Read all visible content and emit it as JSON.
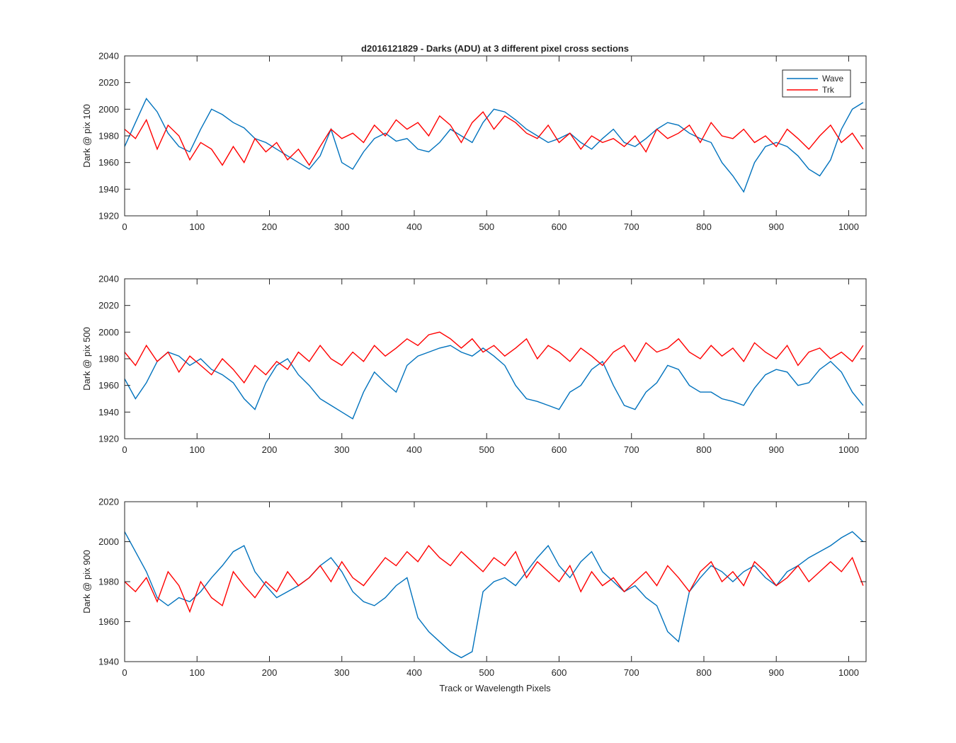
{
  "figure": {
    "title": "d2016121829 - Darks (ADU) at 3 different pixel cross sections",
    "xlabel": "Track or Wavelength Pixels",
    "colors": {
      "wave": "#0072BD",
      "trk": "#FF0000",
      "axes": "#262626"
    }
  },
  "chart_data": [
    {
      "type": "line",
      "ylabel": "Dark @ pix 100",
      "xlim": [
        0,
        1024
      ],
      "ylim": [
        1920,
        2040
      ],
      "xticks": [
        0,
        100,
        200,
        300,
        400,
        500,
        600,
        700,
        800,
        900,
        1000
      ],
      "yticks": [
        1920,
        1940,
        1960,
        1980,
        2000,
        2020,
        2040
      ],
      "legend": {
        "position": "top-right",
        "entries": [
          "Wave",
          "Trk"
        ]
      },
      "series": [
        {
          "name": "Wave",
          "color": "#0072BD",
          "x": [
            0,
            15,
            30,
            45,
            60,
            75,
            90,
            105,
            120,
            135,
            150,
            165,
            180,
            195,
            210,
            225,
            240,
            255,
            270,
            285,
            300,
            315,
            330,
            345,
            360,
            375,
            390,
            405,
            420,
            435,
            450,
            465,
            480,
            495,
            510,
            525,
            540,
            555,
            570,
            585,
            600,
            615,
            630,
            645,
            660,
            675,
            690,
            705,
            720,
            735,
            750,
            765,
            780,
            795,
            810,
            825,
            840,
            855,
            870,
            885,
            900,
            915,
            930,
            945,
            960,
            975,
            990,
            1005,
            1020
          ],
          "values": [
            1972,
            1990,
            2008,
            1998,
            1982,
            1972,
            1968,
            1985,
            2000,
            1996,
            1990,
            1986,
            1978,
            1975,
            1970,
            1965,
            1960,
            1955,
            1965,
            1985,
            1960,
            1955,
            1968,
            1978,
            1982,
            1976,
            1978,
            1970,
            1968,
            1975,
            1985,
            1980,
            1975,
            1990,
            2000,
            1998,
            1992,
            1985,
            1980,
            1975,
            1978,
            1982,
            1975,
            1970,
            1978,
            1985,
            1975,
            1972,
            1978,
            1985,
            1990,
            1988,
            1982,
            1978,
            1975,
            1960,
            1950,
            1938,
            1960,
            1972,
            1975,
            1972,
            1965,
            1955,
            1950,
            1962,
            1985,
            2000,
            2005
          ]
        },
        {
          "name": "Trk",
          "color": "#FF0000",
          "x": [
            0,
            15,
            30,
            45,
            60,
            75,
            90,
            105,
            120,
            135,
            150,
            165,
            180,
            195,
            210,
            225,
            240,
            255,
            270,
            285,
            300,
            315,
            330,
            345,
            360,
            375,
            390,
            405,
            420,
            435,
            450,
            465,
            480,
            495,
            510,
            525,
            540,
            555,
            570,
            585,
            600,
            615,
            630,
            645,
            660,
            675,
            690,
            705,
            720,
            735,
            750,
            765,
            780,
            795,
            810,
            825,
            840,
            855,
            870,
            885,
            900,
            915,
            930,
            945,
            960,
            975,
            990,
            1005,
            1020
          ],
          "values": [
            1985,
            1978,
            1992,
            1970,
            1988,
            1980,
            1962,
            1975,
            1970,
            1958,
            1972,
            1960,
            1978,
            1968,
            1975,
            1962,
            1970,
            1958,
            1972,
            1985,
            1978,
            1982,
            1975,
            1988,
            1980,
            1992,
            1985,
            1990,
            1980,
            1995,
            1988,
            1975,
            1990,
            1998,
            1985,
            1995,
            1990,
            1982,
            1978,
            1988,
            1975,
            1982,
            1970,
            1980,
            1975,
            1978,
            1972,
            1980,
            1968,
            1985,
            1978,
            1982,
            1988,
            1975,
            1990,
            1980,
            1978,
            1985,
            1975,
            1980,
            1972,
            1985,
            1978,
            1970,
            1980,
            1988,
            1975,
            1982,
            1970
          ]
        }
      ]
    },
    {
      "type": "line",
      "ylabel": "Dark @ pix 500",
      "xlim": [
        0,
        1024
      ],
      "ylim": [
        1920,
        2040
      ],
      "xticks": [
        0,
        100,
        200,
        300,
        400,
        500,
        600,
        700,
        800,
        900,
        1000
      ],
      "yticks": [
        1920,
        1940,
        1960,
        1980,
        2000,
        2020,
        2040
      ],
      "series": [
        {
          "name": "Wave",
          "color": "#0072BD",
          "x": [
            0,
            15,
            30,
            45,
            60,
            75,
            90,
            105,
            120,
            135,
            150,
            165,
            180,
            195,
            210,
            225,
            240,
            255,
            270,
            285,
            300,
            315,
            330,
            345,
            360,
            375,
            390,
            405,
            420,
            435,
            450,
            465,
            480,
            495,
            510,
            525,
            540,
            555,
            570,
            585,
            600,
            615,
            630,
            645,
            660,
            675,
            690,
            705,
            720,
            735,
            750,
            765,
            780,
            795,
            810,
            825,
            840,
            855,
            870,
            885,
            900,
            915,
            930,
            945,
            960,
            975,
            990,
            1005,
            1020
          ],
          "values": [
            1965,
            1950,
            1962,
            1978,
            1985,
            1982,
            1975,
            1980,
            1972,
            1968,
            1962,
            1950,
            1942,
            1962,
            1975,
            1980,
            1968,
            1960,
            1950,
            1945,
            1940,
            1935,
            1955,
            1970,
            1962,
            1955,
            1975,
            1982,
            1985,
            1988,
            1990,
            1985,
            1982,
            1988,
            1982,
            1975,
            1960,
            1950,
            1948,
            1945,
            1942,
            1955,
            1960,
            1972,
            1978,
            1960,
            1945,
            1942,
            1955,
            1962,
            1975,
            1972,
            1960,
            1955,
            1955,
            1950,
            1948,
            1945,
            1958,
            1968,
            1972,
            1970,
            1960,
            1962,
            1972,
            1978,
            1970,
            1955,
            1945
          ]
        },
        {
          "name": "Trk",
          "color": "#FF0000",
          "x": [
            0,
            15,
            30,
            45,
            60,
            75,
            90,
            105,
            120,
            135,
            150,
            165,
            180,
            195,
            210,
            225,
            240,
            255,
            270,
            285,
            300,
            315,
            330,
            345,
            360,
            375,
            390,
            405,
            420,
            435,
            450,
            465,
            480,
            495,
            510,
            525,
            540,
            555,
            570,
            585,
            600,
            615,
            630,
            645,
            660,
            675,
            690,
            705,
            720,
            735,
            750,
            765,
            780,
            795,
            810,
            825,
            840,
            855,
            870,
            885,
            900,
            915,
            930,
            945,
            960,
            975,
            990,
            1005,
            1020
          ],
          "values": [
            1985,
            1975,
            1990,
            1978,
            1985,
            1970,
            1982,
            1975,
            1968,
            1980,
            1972,
            1962,
            1975,
            1968,
            1978,
            1972,
            1985,
            1978,
            1990,
            1980,
            1975,
            1985,
            1978,
            1990,
            1982,
            1988,
            1995,
            1990,
            1998,
            2000,
            1995,
            1988,
            1995,
            1985,
            1990,
            1982,
            1988,
            1995,
            1980,
            1990,
            1985,
            1978,
            1988,
            1982,
            1975,
            1985,
            1990,
            1978,
            1992,
            1985,
            1988,
            1995,
            1985,
            1980,
            1990,
            1982,
            1988,
            1978,
            1992,
            1985,
            1980,
            1990,
            1975,
            1985,
            1988,
            1980,
            1985,
            1978,
            1990
          ]
        }
      ]
    },
    {
      "type": "line",
      "ylabel": "Dark @ pix 900",
      "xlim": [
        0,
        1024
      ],
      "ylim": [
        1940,
        2020
      ],
      "xticks": [
        0,
        100,
        200,
        300,
        400,
        500,
        600,
        700,
        800,
        900,
        1000
      ],
      "yticks": [
        1940,
        1960,
        1980,
        2000,
        2020
      ],
      "series": [
        {
          "name": "Wave",
          "color": "#0072BD",
          "x": [
            0,
            15,
            30,
            45,
            60,
            75,
            90,
            105,
            120,
            135,
            150,
            165,
            180,
            195,
            210,
            225,
            240,
            255,
            270,
            285,
            300,
            315,
            330,
            345,
            360,
            375,
            390,
            405,
            420,
            435,
            450,
            465,
            480,
            495,
            510,
            525,
            540,
            555,
            570,
            585,
            600,
            615,
            630,
            645,
            660,
            675,
            690,
            705,
            720,
            735,
            750,
            765,
            780,
            795,
            810,
            825,
            840,
            855,
            870,
            885,
            900,
            915,
            930,
            945,
            960,
            975,
            990,
            1005,
            1020
          ],
          "values": [
            2005,
            1995,
            1985,
            1972,
            1968,
            1972,
            1970,
            1975,
            1982,
            1988,
            1995,
            1998,
            1985,
            1978,
            1972,
            1975,
            1978,
            1982,
            1988,
            1992,
            1985,
            1975,
            1970,
            1968,
            1972,
            1978,
            1982,
            1962,
            1955,
            1950,
            1945,
            1942,
            1945,
            1975,
            1980,
            1982,
            1978,
            1985,
            1992,
            1998,
            1988,
            1982,
            1990,
            1995,
            1985,
            1980,
            1975,
            1978,
            1972,
            1968,
            1955,
            1950,
            1975,
            1982,
            1988,
            1985,
            1980,
            1985,
            1988,
            1982,
            1978,
            1985,
            1988,
            1992,
            1995,
            1998,
            2002,
            2005,
            2000
          ]
        },
        {
          "name": "Trk",
          "color": "#FF0000",
          "x": [
            0,
            15,
            30,
            45,
            60,
            75,
            90,
            105,
            120,
            135,
            150,
            165,
            180,
            195,
            210,
            225,
            240,
            255,
            270,
            285,
            300,
            315,
            330,
            345,
            360,
            375,
            390,
            405,
            420,
            435,
            450,
            465,
            480,
            495,
            510,
            525,
            540,
            555,
            570,
            585,
            600,
            615,
            630,
            645,
            660,
            675,
            690,
            705,
            720,
            735,
            750,
            765,
            780,
            795,
            810,
            825,
            840,
            855,
            870,
            885,
            900,
            915,
            930,
            945,
            960,
            975,
            990,
            1005,
            1020
          ],
          "values": [
            1980,
            1975,
            1982,
            1970,
            1985,
            1978,
            1965,
            1980,
            1972,
            1968,
            1985,
            1978,
            1972,
            1980,
            1975,
            1985,
            1978,
            1982,
            1988,
            1980,
            1990,
            1982,
            1978,
            1985,
            1992,
            1988,
            1995,
            1990,
            1998,
            1992,
            1988,
            1995,
            1990,
            1985,
            1992,
            1988,
            1995,
            1982,
            1990,
            1985,
            1980,
            1988,
            1975,
            1985,
            1978,
            1982,
            1975,
            1980,
            1985,
            1978,
            1988,
            1982,
            1975,
            1985,
            1990,
            1980,
            1985,
            1978,
            1990,
            1985,
            1978,
            1982,
            1988,
            1980,
            1985,
            1990,
            1985,
            1992,
            1978
          ]
        }
      ]
    }
  ]
}
